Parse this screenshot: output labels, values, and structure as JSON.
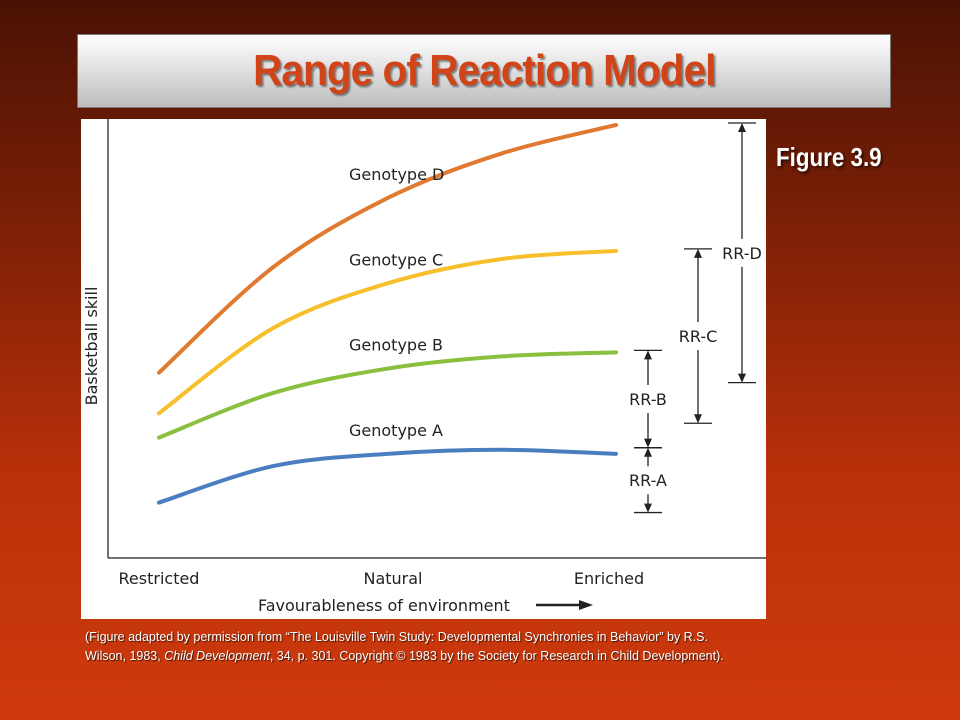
{
  "slide": {
    "title": "Range of Reaction Model",
    "figure_label": "Figure 3.9",
    "caption": {
      "part1": "(Figure adapted by permission from “The Louisville Twin Study: Developmental Synchronies in Behavior” by R.S. Wilson, 1983, ",
      "journal": "Child Development",
      "part2": ", 34, p. 301.  Copyright © 1983 by the Society for Research in Child Development)."
    }
  },
  "chart_data": {
    "type": "line",
    "title": "",
    "xlabel": "Favourableness of environment",
    "ylabel": "Basketball skill",
    "categories": [
      "Restricted",
      "Natural",
      "Enriched"
    ],
    "xlim": [
      0,
      1
    ],
    "ylim": [
      0,
      1
    ],
    "grid": false,
    "legend": "inline labels on curves",
    "series": [
      {
        "name": "Genotype D",
        "color": "#e07a30",
        "x": [
          0.0,
          0.25,
          0.5,
          0.75,
          1.0
        ],
        "y": [
          0.39,
          0.65,
          0.82,
          0.93,
          1.0
        ]
      },
      {
        "name": "Genotype C",
        "color": "#f7bf2c",
        "x": [
          0.0,
          0.25,
          0.5,
          0.75,
          1.0
        ],
        "y": [
          0.29,
          0.5,
          0.61,
          0.67,
          0.69
        ]
      },
      {
        "name": "Genotype B",
        "color": "#8bc03f",
        "x": [
          0.0,
          0.25,
          0.5,
          0.75,
          1.0
        ],
        "y": [
          0.23,
          0.34,
          0.4,
          0.43,
          0.44
        ]
      },
      {
        "name": "Genotype A",
        "color": "#4a7ec0",
        "x": [
          0.0,
          0.25,
          0.5,
          0.75,
          1.0
        ],
        "y": [
          0.07,
          0.16,
          0.19,
          0.2,
          0.19
        ]
      }
    ],
    "ranges": [
      {
        "name": "RR-D",
        "low": 0.39,
        "high": 1.0
      },
      {
        "name": "RR-C",
        "low": 0.29,
        "high": 0.69
      },
      {
        "name": "RR-B",
        "low": 0.23,
        "high": 0.44
      },
      {
        "name": "RR-A",
        "low": 0.07,
        "high": 0.2
      }
    ]
  }
}
